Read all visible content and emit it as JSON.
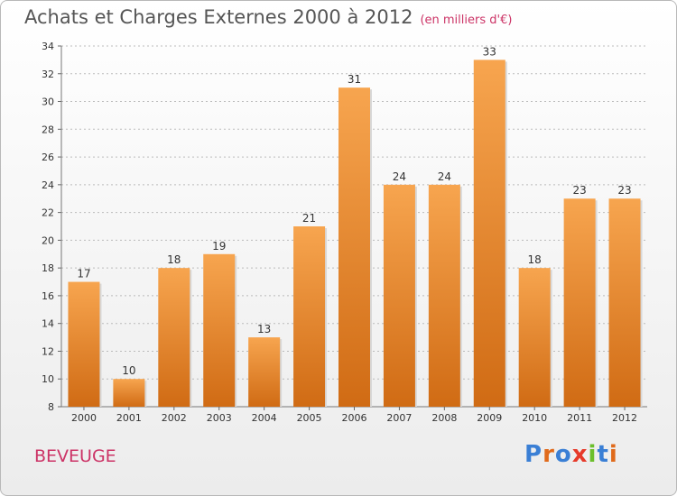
{
  "title": "Achats et Charges Externes 2000 à 2012",
  "subtitle": "(en milliers d'€)",
  "place": "BEVEUGE",
  "logo": {
    "letters": [
      "P",
      "r",
      "o",
      "x",
      "i",
      "t",
      "i"
    ],
    "colors": [
      "#3a7fd5",
      "#e06a1b",
      "#3a7fd5",
      "#e63a2a",
      "#6cbf2c",
      "#3a7fd5",
      "#e06a1b"
    ]
  },
  "colors": {
    "bar_top": "#f7a54f",
    "bar_bottom": "#d06b14",
    "grid": "#bbbbbb"
  },
  "chart_data": {
    "type": "bar",
    "categories": [
      "2000",
      "2001",
      "2002",
      "2003",
      "2004",
      "2005",
      "2006",
      "2007",
      "2008",
      "2009",
      "2010",
      "2011",
      "2012"
    ],
    "values": [
      17,
      10,
      18,
      19,
      13,
      21,
      31,
      24,
      24,
      33,
      18,
      23,
      23
    ],
    "title": "Achats et Charges Externes 2000 à 2012",
    "subtitle": "(en milliers d'€)",
    "ylim": [
      8,
      34
    ],
    "yticks": [
      8,
      10,
      12,
      14,
      16,
      18,
      20,
      22,
      24,
      26,
      28,
      30,
      32,
      34
    ],
    "grid": true
  }
}
